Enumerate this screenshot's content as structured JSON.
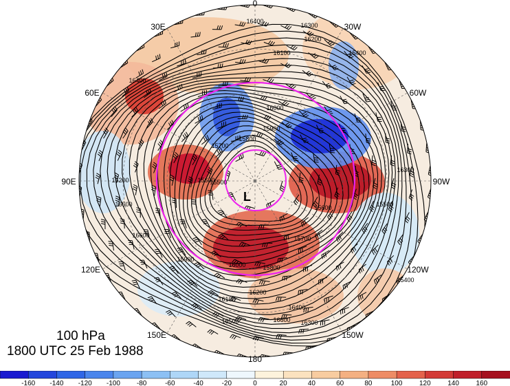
{
  "map": {
    "projection": "north-polar-stereographic",
    "longitude_labels": {
      "top": "0",
      "top_right": "30W",
      "right_upper": "60W",
      "right": "90W",
      "right_lower": "120W",
      "bottom_right": "150W",
      "bottom": "180",
      "bottom_left": "150E",
      "left_lower": "120E",
      "left": "90E",
      "left_upper": "60E",
      "top_left": "30E"
    },
    "low_marker": "L",
    "contour_labels": [
      "16400",
      "16300",
      "16200",
      "16100",
      "16000",
      "15900",
      "15800",
      "15700",
      "15600",
      "15500",
      "15400",
      "16500",
      "16600"
    ],
    "colors": {
      "contour": "#000000",
      "circle": "#ee22ee",
      "strong_positive": "#c8102e",
      "strong_negative": "#1a2bd6"
    }
  },
  "caption": {
    "level": "100 hPa",
    "time": "1800 UTC 25 Feb 1988"
  },
  "colorbar": {
    "ticks": [
      "-160",
      "-140",
      "-120",
      "-100",
      "-80",
      "-60",
      "-40",
      "-20",
      "0",
      "20",
      "40",
      "60",
      "80",
      "100",
      "120",
      "140",
      "160"
    ],
    "colors": [
      "#1a1ad0",
      "#2346dc",
      "#2f66e6",
      "#4a85ec",
      "#6aa4f0",
      "#8cc0f4",
      "#aed6f7",
      "#cfe8fa",
      "#eef7fd",
      "#fdf3dc",
      "#fbe2bf",
      "#f8cca0",
      "#f4b082",
      "#ee8c65",
      "#e4624b",
      "#d33a36",
      "#c01f2a",
      "#a6101f"
    ]
  }
}
